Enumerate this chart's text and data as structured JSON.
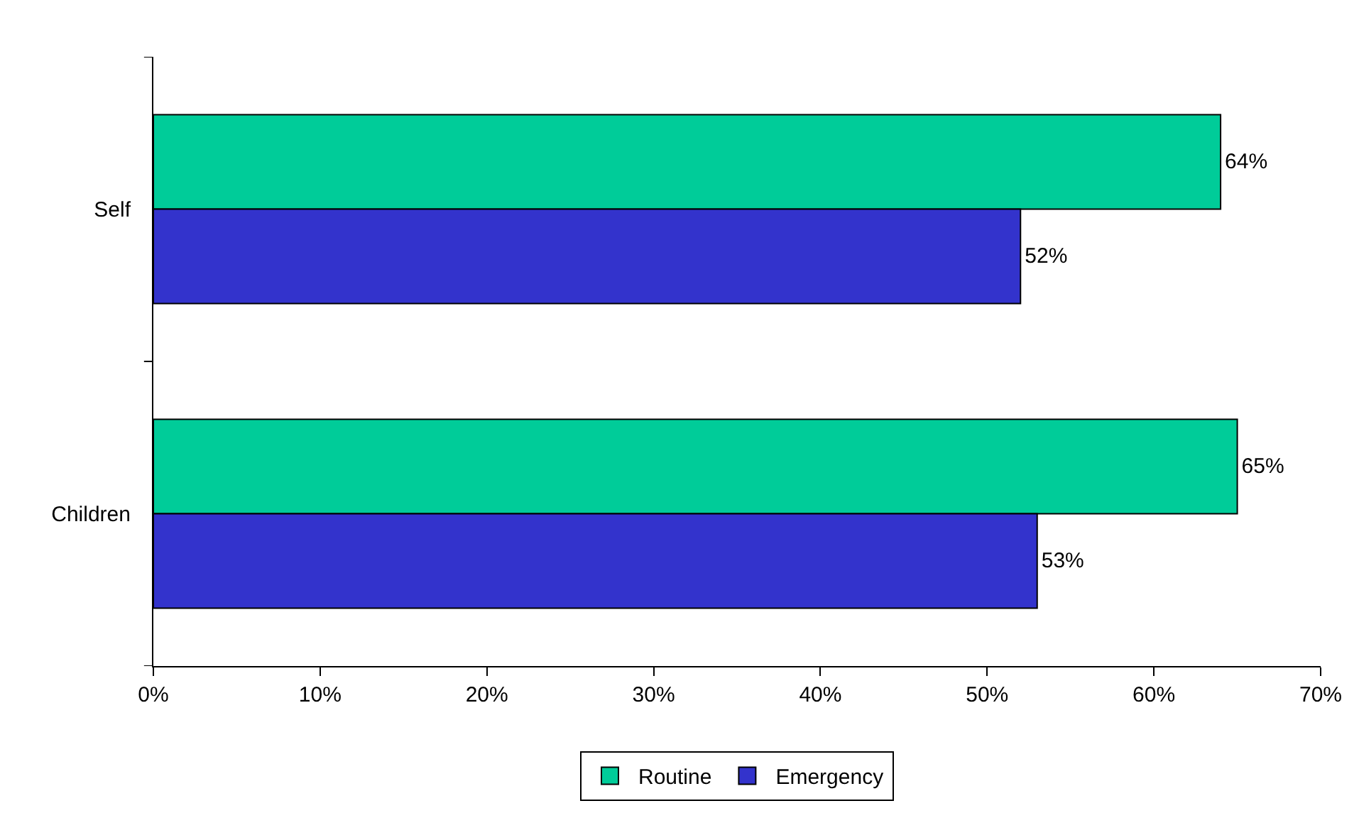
{
  "chart_data": {
    "type": "bar",
    "orientation": "horizontal",
    "categories": [
      "Self",
      "Children"
    ],
    "series": [
      {
        "name": "Routine",
        "color": "#00cc99",
        "values": [
          64,
          65
        ],
        "value_labels": [
          "64%",
          "65%"
        ]
      },
      {
        "name": "Emergency",
        "color": "#3333cc",
        "values": [
          52,
          53
        ],
        "value_labels": [
          "52%",
          "53%"
        ]
      }
    ],
    "xlim": [
      0,
      70
    ],
    "xticks": [
      {
        "value": 0,
        "label": "0%"
      },
      {
        "value": 10,
        "label": "10%"
      },
      {
        "value": 20,
        "label": "20%"
      },
      {
        "value": 30,
        "label": "30%"
      },
      {
        "value": 40,
        "label": "40%"
      },
      {
        "value": 50,
        "label": "50%"
      },
      {
        "value": 60,
        "label": "60%"
      },
      {
        "value": 70,
        "label": "70%"
      }
    ],
    "grid": false,
    "legend": "bottom"
  }
}
